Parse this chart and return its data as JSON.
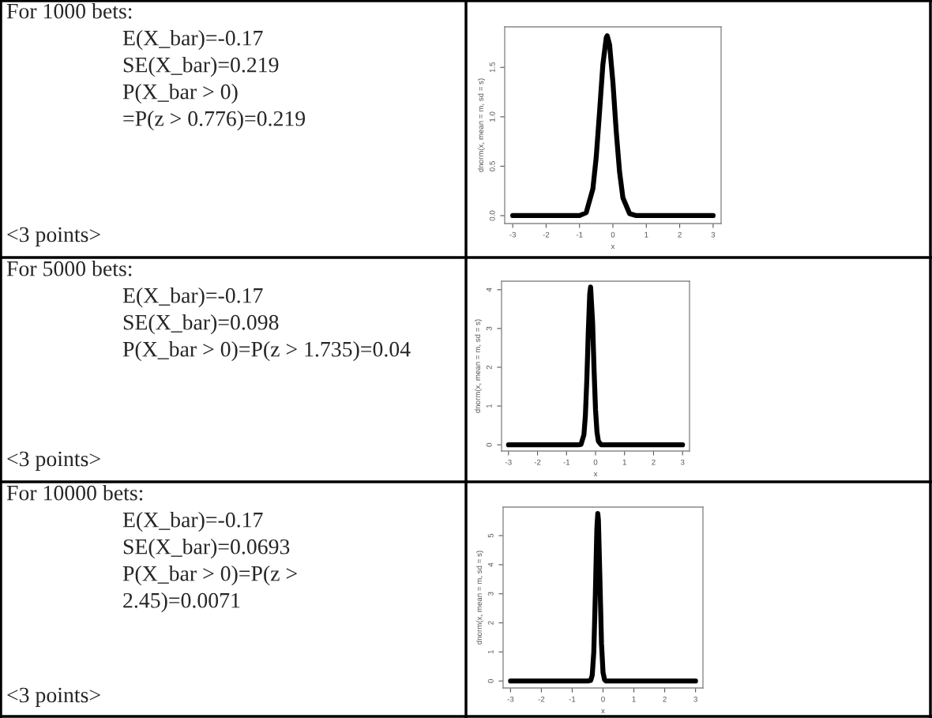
{
  "chart_data": [
    {
      "type": "other",
      "annotations": [
        "For 1000 bets:",
        "E(X_bar)=-0.17",
        "SE(X_bar)=0.219",
        "P(X_bar > 0)",
        "=P(z > 0.776)=0.219",
        "<3 points>"
      ]
    },
    {
      "type": "line",
      "xlabel": "x",
      "ylabel": "dnorm(x, mean = m, sd = s)",
      "xlim": [
        -3.24,
        3.24
      ],
      "ylim": [
        -0.08,
        1.91
      ],
      "xticks": [
        -3,
        -2,
        -1,
        0,
        1,
        2,
        3
      ],
      "yticks": [
        {
          "value": 0,
          "label": "0.0"
        },
        {
          "value": 0.5,
          "label": "0.5"
        },
        {
          "value": 1,
          "label": "1.0"
        },
        {
          "value": 1.5,
          "label": "1.5"
        }
      ],
      "grid": false,
      "marker": "none",
      "line_style": "solid",
      "series": [
        {
          "color": "#000000",
          "x": [
            -3,
            -1,
            -0.8,
            -0.6,
            -0.5,
            -0.4,
            -0.3,
            -0.2,
            -0.17,
            -0.1,
            0,
            0.1,
            0.2,
            0.3,
            0.5,
            0.7,
            1,
            3
          ],
          "values": [
            0,
            0,
            0.03,
            0.27,
            0.59,
            1.05,
            1.53,
            1.8,
            1.82,
            1.73,
            1.35,
            0.85,
            0.44,
            0.18,
            0.02,
            0,
            0,
            0
          ]
        }
      ]
    },
    {
      "type": "other",
      "annotations": [
        "For 5000 bets:",
        "E(X_bar)=-0.17",
        "SE(X_bar)=0.098",
        "P(X_bar > 0)=P(z > 1.735)=0.04",
        "<3 points>"
      ]
    },
    {
      "type": "line",
      "xlabel": "x",
      "ylabel": "dnorm(x, mean = m, sd = s)",
      "xlim": [
        -3.24,
        3.24
      ],
      "ylim": [
        -0.16,
        4.22
      ],
      "xticks": [
        -3,
        -2,
        -1,
        0,
        1,
        2,
        3
      ],
      "yticks": [
        0,
        1,
        2,
        3,
        4
      ],
      "grid": false,
      "marker": "none",
      "line_style": "solid",
      "series": [
        {
          "color": "#000000",
          "x": [
            -3,
            -0.6,
            -0.5,
            -0.4,
            -0.35,
            -0.3,
            -0.25,
            -0.2,
            -0.17,
            -0.1,
            -0.05,
            0,
            0.05,
            0.1,
            0.2,
            3
          ],
          "values": [
            0,
            0,
            0.01,
            0.26,
            0.75,
            1.68,
            2.91,
            3.89,
            4.07,
            3.15,
            1.92,
            0.9,
            0.33,
            0.09,
            0,
            0
          ]
        }
      ]
    },
    {
      "type": "other",
      "annotations": [
        "For 10000 bets:",
        "E(X_bar)=-0.17",
        "SE(X_bar)=0.0693",
        "P(X_bar > 0)=P(z >",
        "2.45)=0.0071",
        "<3 points>"
      ]
    },
    {
      "type": "line",
      "xlabel": "x",
      "ylabel": "dnorm(x, mean = m, sd = s)",
      "xlim": [
        -3.24,
        3.24
      ],
      "ylim": [
        -0.24,
        5.98
      ],
      "xticks": [
        -3,
        -2,
        -1,
        0,
        1,
        2,
        3
      ],
      "yticks": [
        0,
        1,
        2,
        3,
        4,
        5
      ],
      "grid": false,
      "marker": "none",
      "line_style": "solid",
      "series": [
        {
          "color": "#000000",
          "x": [
            -3,
            -0.5,
            -0.4,
            -0.35,
            -0.3,
            -0.25,
            -0.2,
            -0.17,
            -0.15,
            -0.1,
            -0.05,
            0,
            0.05,
            0.1,
            0.2,
            3
          ],
          "values": [
            0,
            0,
            0.02,
            0.2,
            0.99,
            2.96,
            5.25,
            5.76,
            5.53,
            3.46,
            1.29,
            0.29,
            0.04,
            0,
            0,
            0
          ]
        }
      ]
    }
  ]
}
